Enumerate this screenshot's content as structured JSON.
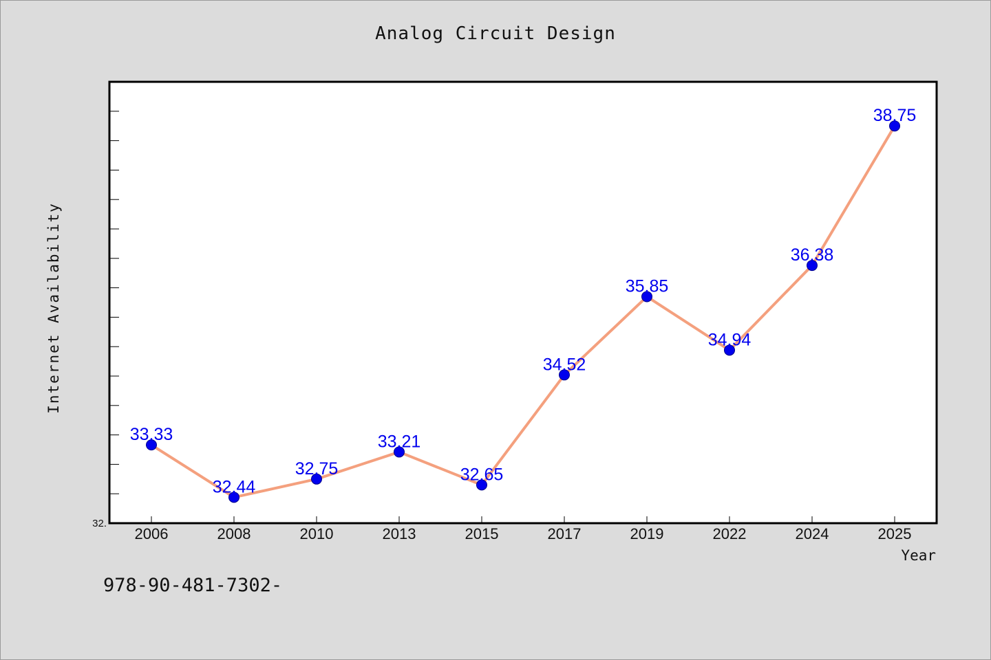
{
  "chart_data": {
    "type": "line",
    "title": "Analog Circuit Design",
    "xlabel": "Year",
    "ylabel": "Internet Availability",
    "categories": [
      "2006",
      "2008",
      "2010",
      "2013",
      "2015",
      "2017",
      "2019",
      "2022",
      "2024",
      "2025"
    ],
    "series": [
      {
        "values": [
          33.33,
          32.44,
          32.75,
          33.21,
          32.65,
          34.52,
          35.85,
          34.94,
          36.38,
          38.75
        ]
      }
    ],
    "ylim": [
      32.0,
      39.5
    ],
    "y_tick_labels_visible": [
      "32."
    ],
    "grid": false,
    "colors": {
      "line": "#f4a07e",
      "marker": "#0000ee",
      "data_label": "#0000ee",
      "plot_background": "#ffffff",
      "page_background": "#dcdcdc"
    }
  },
  "footer": {
    "isbn": "978-90-481-7302-"
  }
}
